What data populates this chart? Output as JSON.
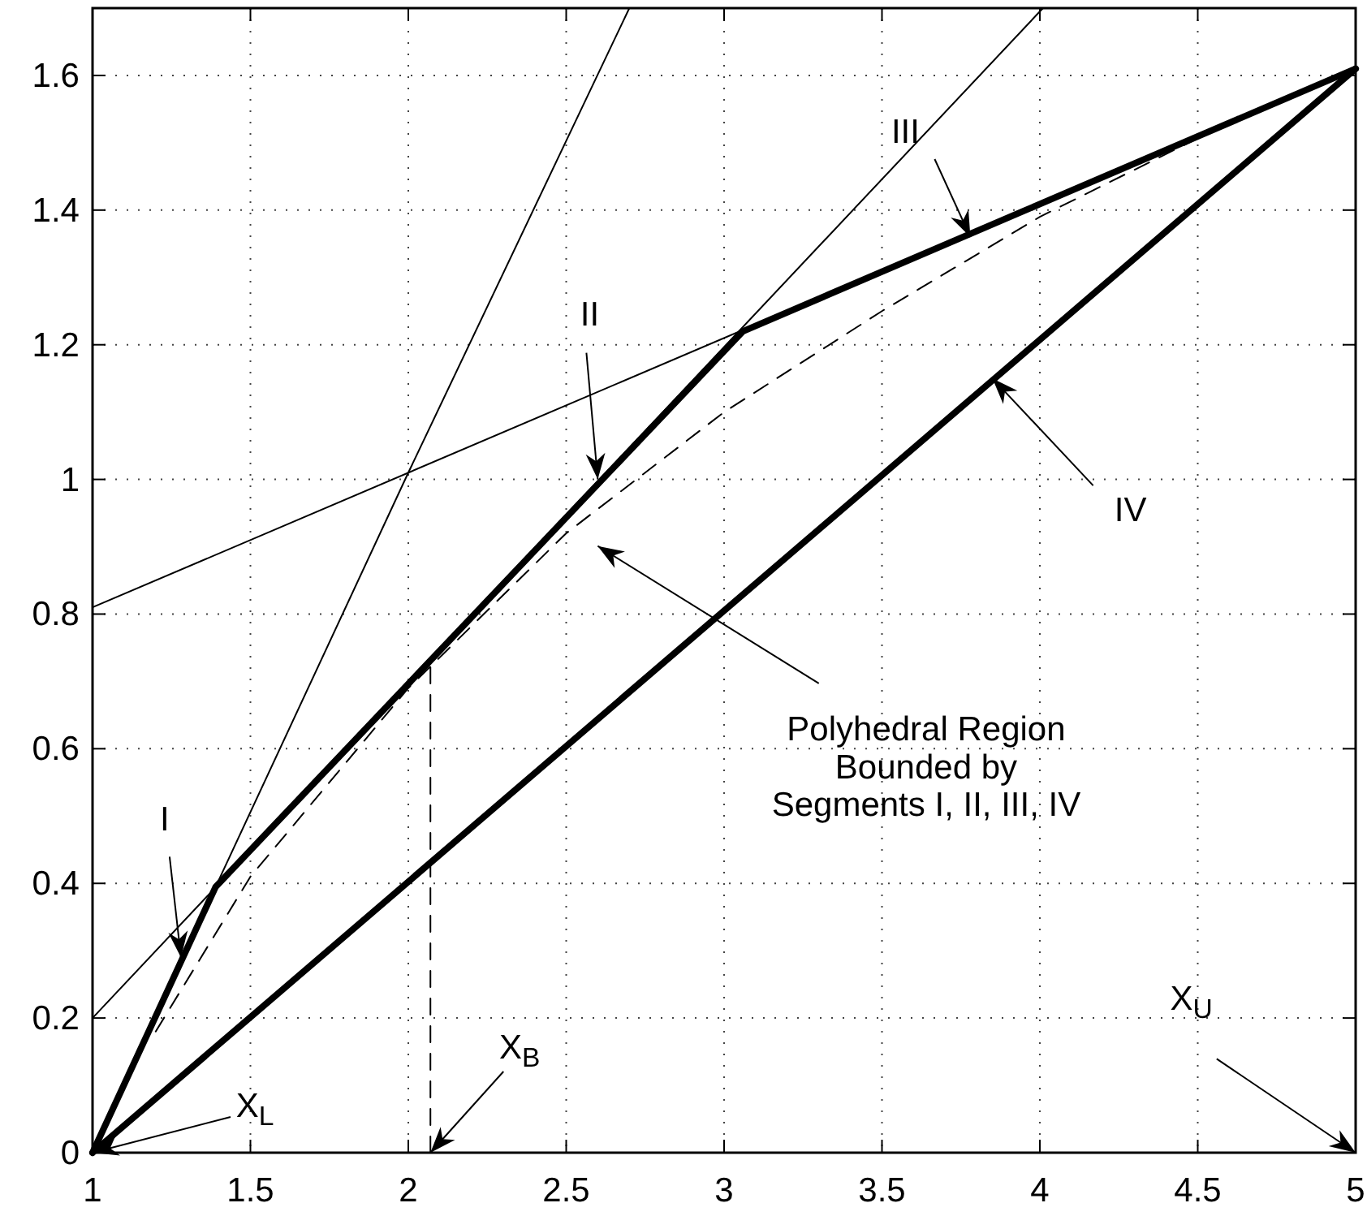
{
  "chart_data": {
    "type": "line",
    "xlim": [
      1,
      5
    ],
    "ylim": [
      0,
      1.7
    ],
    "xticks": [
      1,
      1.5,
      2,
      2.5,
      3,
      3.5,
      4,
      4.5,
      5
    ],
    "yticks": [
      0,
      0.2,
      0.4,
      0.6,
      0.8,
      1,
      1.2,
      1.4,
      1.6
    ],
    "grid": true,
    "marker": "none",
    "series": [
      {
        "color": "#000000",
        "line_style": "solid",
        "x": [
          1,
          1.39,
          3.06,
          5
        ],
        "values": [
          0,
          0.395,
          1.22,
          1.61
        ]
      },
      {
        "color": "#000000",
        "line_style": "solid",
        "x": [
          1,
          5
        ],
        "values": [
          0,
          1.61
        ]
      },
      {
        "color": "#000000",
        "line_style": "solid",
        "x": [
          1.39,
          2,
          2.7
        ],
        "values": [
          0.395,
          1.01,
          1.7
        ]
      },
      {
        "color": "#000000",
        "line_style": "solid",
        "x": [
          1,
          4.01
        ],
        "values": [
          0.2,
          1.7
        ]
      },
      {
        "color": "#000000",
        "line_style": "solid",
        "x": [
          1,
          5
        ],
        "values": [
          0.81,
          1.61
        ]
      },
      {
        "color": "#000000",
        "line_style": "dashed",
        "x": [
          1.2,
          1.5,
          2,
          2.5,
          3,
          3.5,
          4,
          4.6
        ],
        "values": [
          0.18,
          0.41,
          0.69,
          0.92,
          1.1,
          1.25,
          1.39,
          1.53
        ]
      },
      {
        "color": "#000000",
        "line_style": "dashed",
        "x": [
          2.07,
          2.07
        ],
        "values": [
          0,
          0.73
        ]
      }
    ],
    "annotations": [
      {
        "text": "I",
        "x": 1.28,
        "y": 0.29
      },
      {
        "text": "II",
        "x": 2.6,
        "y": 1.0
      },
      {
        "text": "III",
        "x": 3.78,
        "y": 1.36
      },
      {
        "text": "IV",
        "x": 3.85,
        "y": 1.15
      },
      "Polyhedral Region\nBounded by\nSegments I, II, III, IV",
      {
        "text": "X$_{L}$",
        "x": 1,
        "y": 0
      },
      {
        "text": "X$_{B}$",
        "x": 2.07,
        "y": 0
      },
      "X$_{U}$"
    ]
  }
}
